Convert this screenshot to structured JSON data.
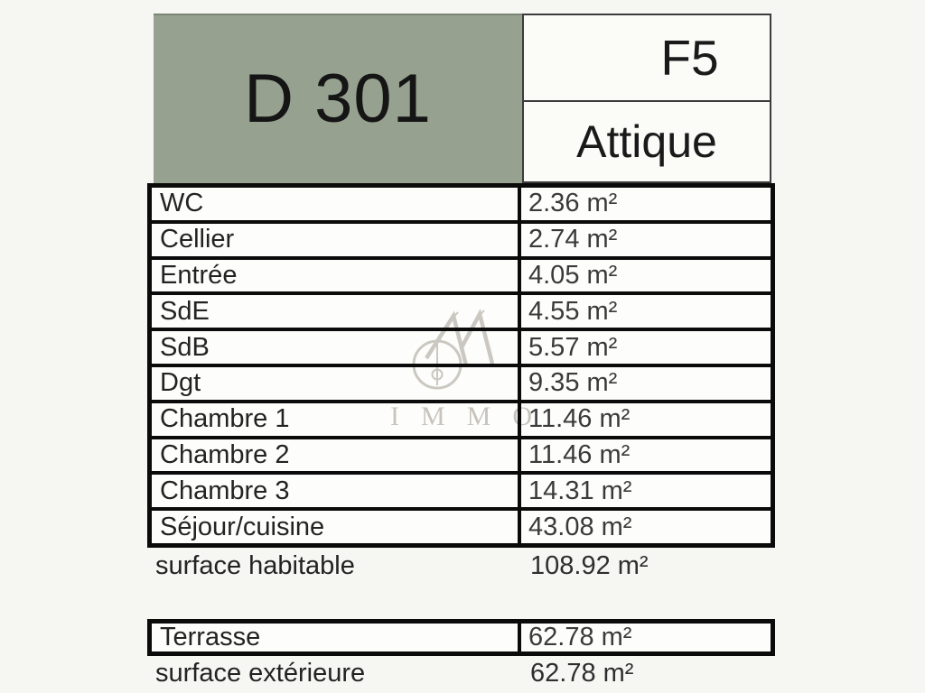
{
  "header": {
    "unit": "D 301",
    "type": "F5",
    "floor": "Attique"
  },
  "rooms": [
    {
      "label": "WC",
      "area": "2.36 m²"
    },
    {
      "label": "Cellier",
      "area": "2.74 m²"
    },
    {
      "label": "Entrée",
      "area": "4.05 m²"
    },
    {
      "label": "SdE",
      "area": "4.55 m²"
    },
    {
      "label": "SdB",
      "area": "5.57 m²"
    },
    {
      "label": "Dgt",
      "area": "9.35 m²"
    },
    {
      "label": "Chambre 1",
      "area": "11.46 m²"
    },
    {
      "label": "Chambre 2",
      "area": "11.46 m²"
    },
    {
      "label": "Chambre 3",
      "area": "14.31 m²"
    },
    {
      "label": "Séjour/cuisine",
      "area": "43.08 m²"
    }
  ],
  "habitable_summary": {
    "label": "surface habitable",
    "area": "108.92 m²"
  },
  "exterior_rooms": [
    {
      "label": "Terrasse",
      "area": "62.78 m²"
    }
  ],
  "exterior_summary": {
    "label": "surface extérieure",
    "area": "62.78 m²"
  },
  "watermark": {
    "text": "IMMO",
    "logo": "immo-monogram"
  },
  "colors": {
    "header_green": "#96a190",
    "background": "#f6f6f3",
    "table_border": "#0b0b0b",
    "watermark_gray": "#c7c4bd"
  }
}
